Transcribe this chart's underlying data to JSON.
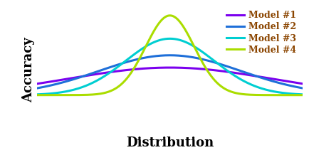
{
  "title": "",
  "xlabel": "Distribution",
  "ylabel": "Accuracy",
  "models": [
    {
      "label": "Model #1",
      "color": "#7B00EE",
      "sigma": 4.5,
      "amplitude": 0.38
    },
    {
      "label": "Model #2",
      "color": "#1E6FD9",
      "sigma": 3.2,
      "amplitude": 0.55
    },
    {
      "label": "Model #3",
      "color": "#00CED1",
      "sigma": 2.0,
      "amplitude": 0.78
    },
    {
      "label": "Model #4",
      "color": "#AADD00",
      "sigma": 1.1,
      "amplitude": 1.1
    }
  ],
  "x_range": [
    -6,
    6
  ],
  "y_range": [
    -0.55,
    1.25
  ],
  "label_color": "#8B4500",
  "axis_label_color": "#000000",
  "background_color": "#FFFFFF",
  "legend_fontsize": 9,
  "axis_label_fontsize": 13,
  "linewidth": 2.2
}
